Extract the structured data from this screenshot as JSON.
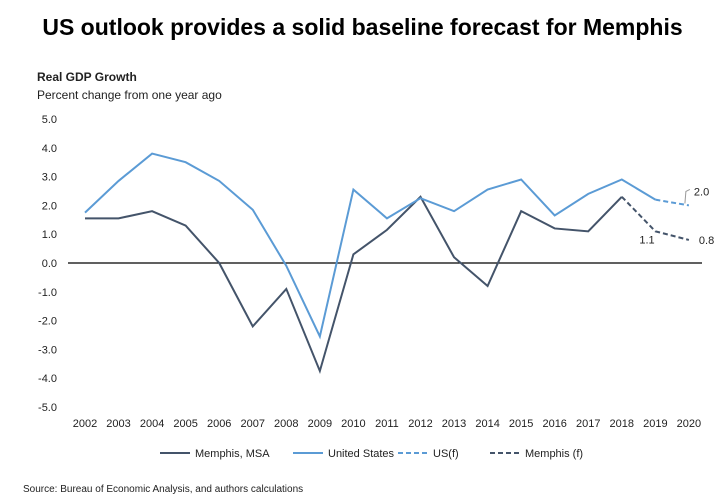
{
  "title": "US outlook provides a solid baseline forecast for Memphis",
  "source": "Source: Bureau of Economic Analysis, and authors calculations",
  "chart_data": {
    "type": "line",
    "title": "US outlook provides a solid baseline forecast for Memphis",
    "ylabel": "Real GDP Growth",
    "ysublabel": "Percent change from one year ago",
    "ylim": [
      -5,
      5
    ],
    "yticks": [
      "5.0",
      "4.0",
      "3.0",
      "2.0",
      "1.0",
      "0.0",
      "-1.0",
      "-2.0",
      "-3.0",
      "-4.0",
      "-5.0"
    ],
    "categories": [
      "2002",
      "2003",
      "2004",
      "2005",
      "2006",
      "2007",
      "2008",
      "2009",
      "2010",
      "2011",
      "2012",
      "2013",
      "2014",
      "2015",
      "2016",
      "2017",
      "2018",
      "2019",
      "2020"
    ],
    "series": [
      {
        "name": "Memphis, MSA",
        "color": "#44546a",
        "dash": false,
        "values": [
          1.55,
          1.55,
          1.8,
          1.3,
          0.0,
          -2.2,
          -0.9,
          -3.75,
          0.3,
          1.15,
          2.3,
          0.2,
          -0.8,
          1.8,
          1.2,
          1.1,
          2.3,
          null,
          null
        ]
      },
      {
        "name": "United States",
        "color": "#5b9bd5",
        "dash": false,
        "values": [
          1.75,
          2.85,
          3.8,
          3.5,
          2.85,
          1.85,
          -0.1,
          -2.55,
          2.55,
          1.55,
          2.25,
          1.8,
          2.55,
          2.9,
          1.65,
          2.4,
          2.9,
          2.2,
          null
        ]
      },
      {
        "name": "US(f)",
        "color": "#5b9bd5",
        "dash": true,
        "values": [
          null,
          null,
          null,
          null,
          null,
          null,
          null,
          null,
          null,
          null,
          null,
          null,
          null,
          null,
          null,
          null,
          null,
          2.2,
          2.0
        ]
      },
      {
        "name": "Memphis (f)",
        "color": "#44546a",
        "dash": true,
        "values": [
          null,
          null,
          null,
          null,
          null,
          null,
          null,
          null,
          null,
          null,
          null,
          null,
          null,
          null,
          null,
          null,
          2.3,
          1.1,
          0.8
        ]
      }
    ],
    "annotations": [
      {
        "text": "2.0",
        "year": "2020",
        "series": "US(f)"
      },
      {
        "text": "1.1",
        "year": "2019",
        "series": "Memphis (f)"
      },
      {
        "text": "0.8",
        "year": "2020",
        "series": "Memphis (f)"
      }
    ],
    "legend": "bottom",
    "grid": false
  }
}
